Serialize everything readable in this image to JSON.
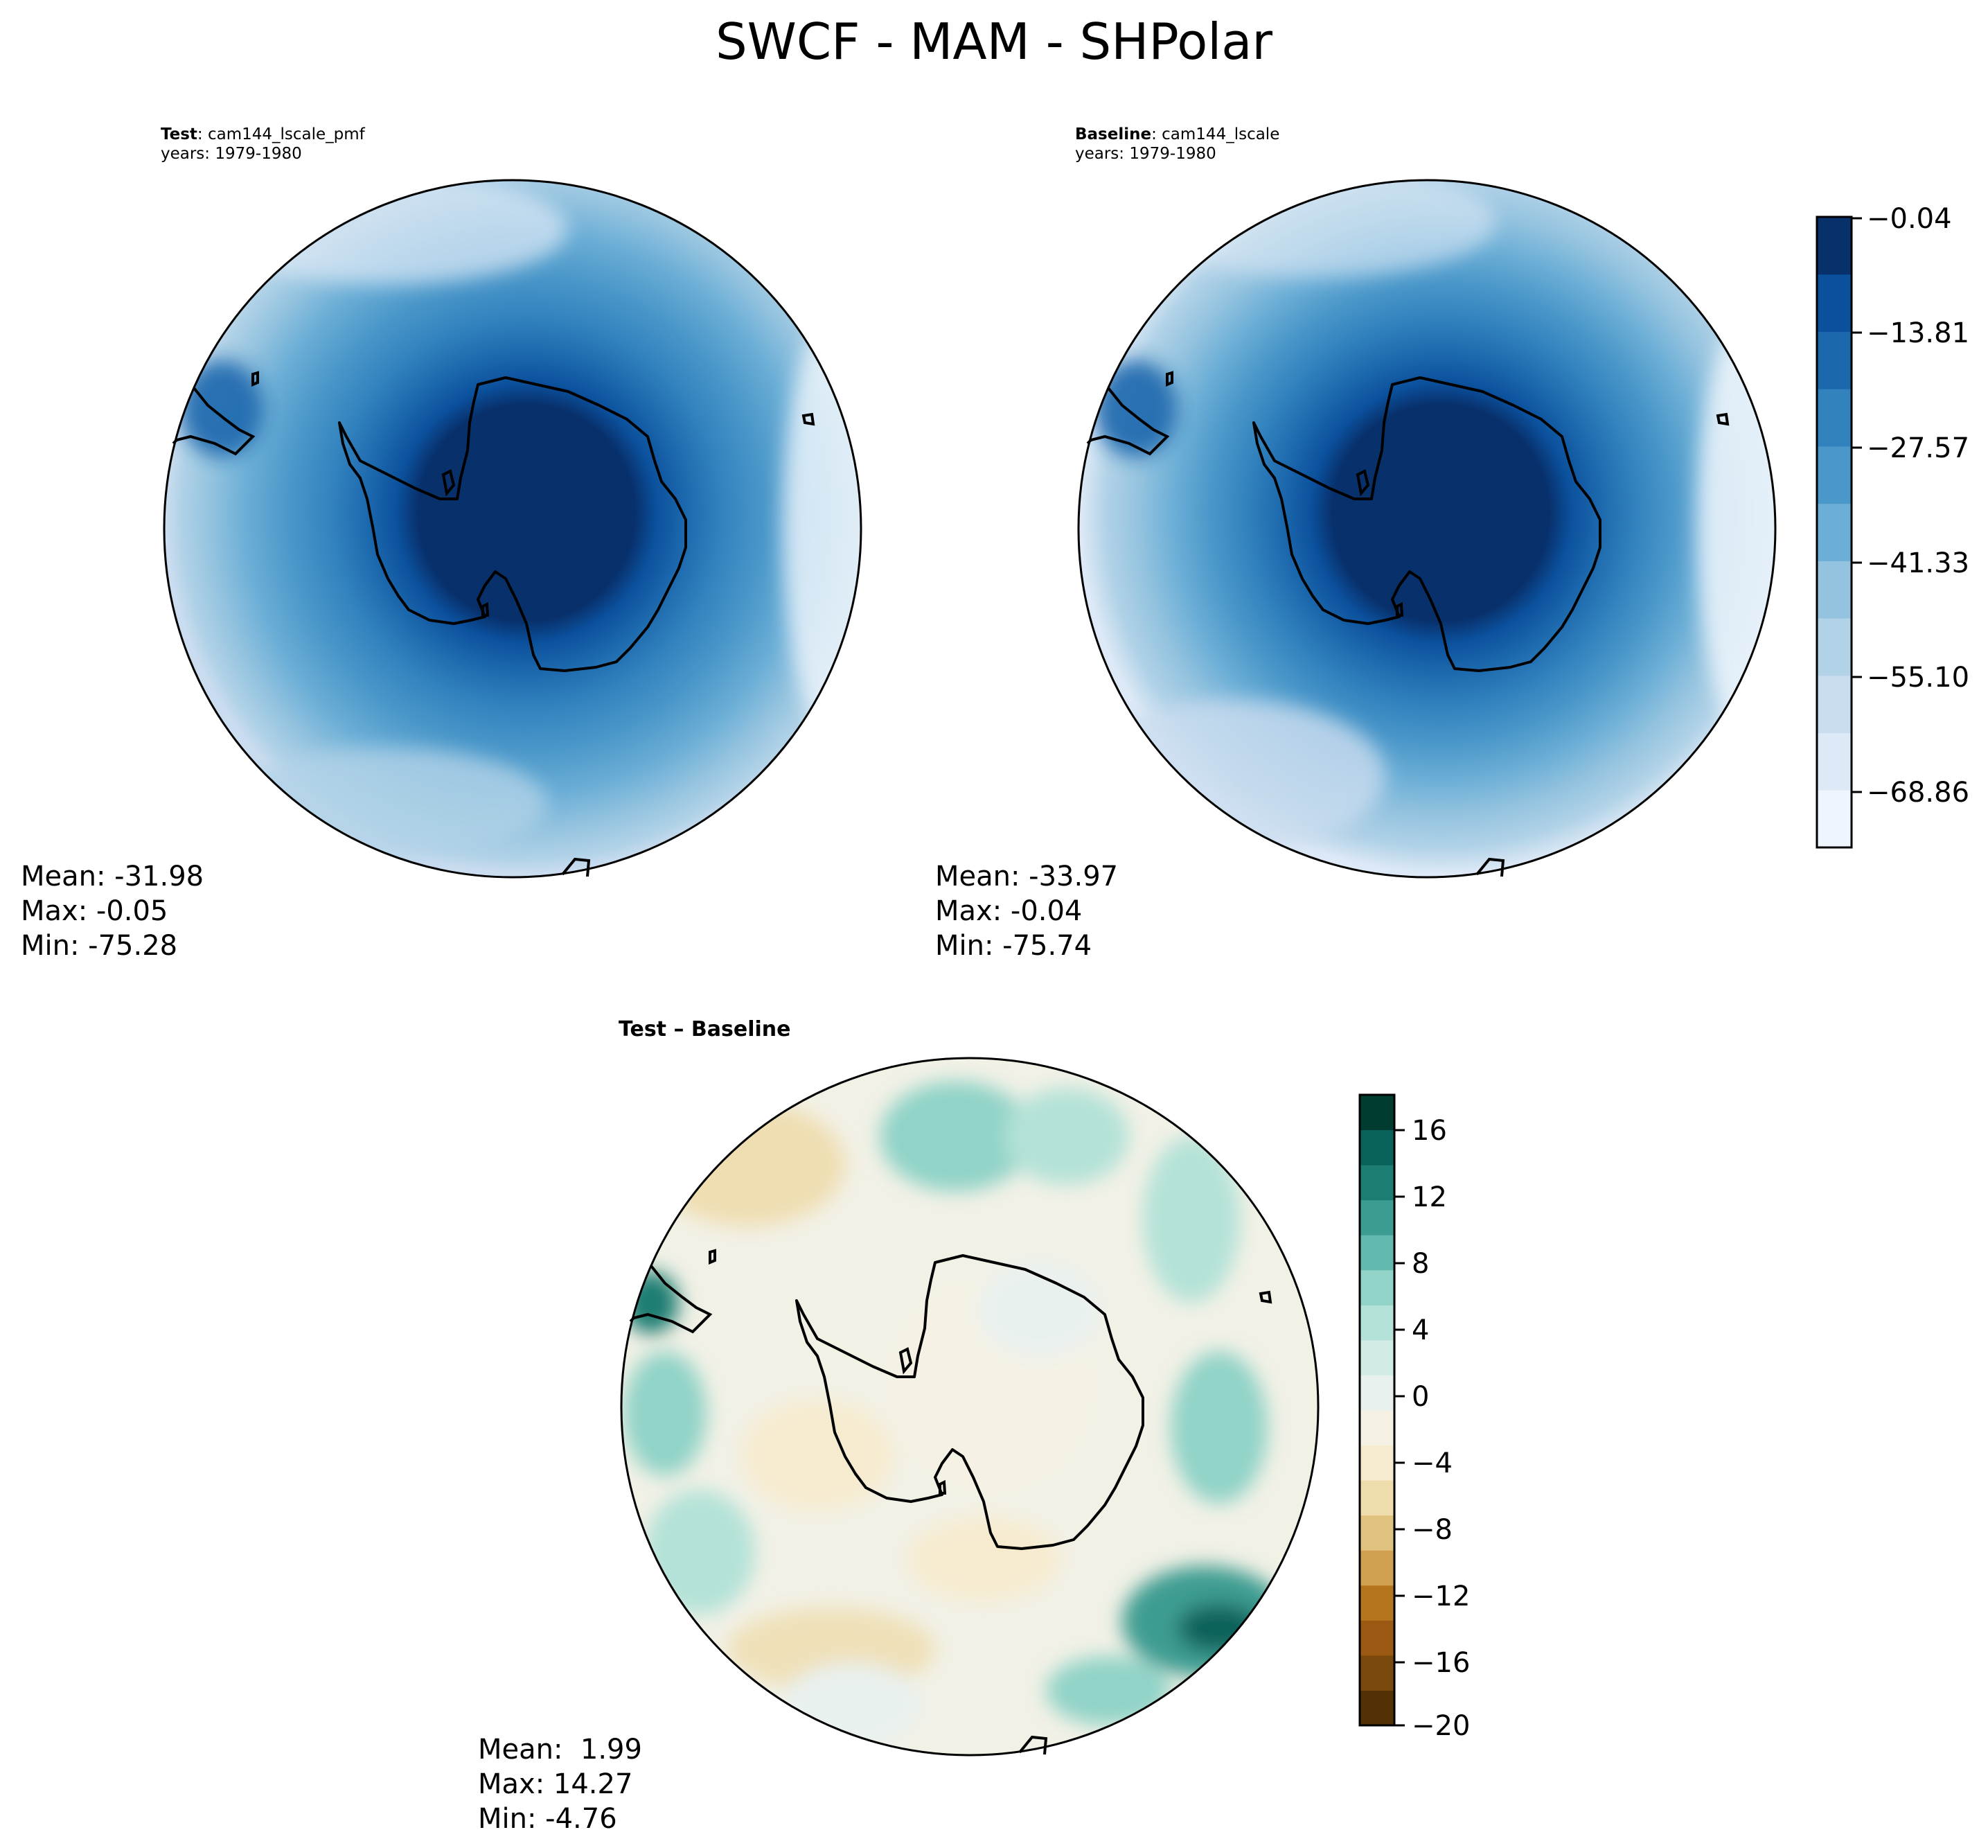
{
  "figure": {
    "title": "SWCF - MAM - SHPolar"
  },
  "panels": {
    "test": {
      "label_bold": "Test",
      "label_rest": ": cam144_lscale_pmf",
      "years": "years: 1979-1980",
      "stats": {
        "mean": "Mean: -31.98",
        "max": "Max: -0.05",
        "min": "Min: -75.28"
      }
    },
    "baseline": {
      "label_bold": "Baseline",
      "label_rest": ": cam144_lscale",
      "years": "years: 1979-1980",
      "stats": {
        "mean": "Mean: -33.97",
        "max": "Max: -0.04",
        "min": "Min: -75.74"
      }
    },
    "diff": {
      "title": "Test – Baseline",
      "stats": {
        "mean": "Mean:  1.99",
        "max": "Max: 14.27",
        "min": "Min: -4.76"
      }
    }
  },
  "colorbars": {
    "main": {
      "ticks": [
        "−0.04",
        "−13.81",
        "−27.57",
        "−41.33",
        "−55.10",
        "−68.86"
      ],
      "colors": [
        "#eef5fc",
        "#dde9f6",
        "#cadcef",
        "#b1d2e7",
        "#94c3df",
        "#6baed6",
        "#4a97c9",
        "#3282be",
        "#1c68ad",
        "#0b509c",
        "#08306b"
      ]
    },
    "diff": {
      "ticks": [
        "16",
        "12",
        "8",
        "4",
        "0",
        "−4",
        "−8",
        "−12",
        "−16",
        "−20"
      ],
      "colors": [
        "#543005",
        "#7a4a0d",
        "#9b5a14",
        "#b5751f",
        "#cfa04f",
        "#dfc27d",
        "#eedcac",
        "#f6ebcf",
        "#f5f1e4",
        "#e9f1ef",
        "#d1ece6",
        "#b4e2d8",
        "#91d3c7",
        "#63b9ad",
        "#3c9c91",
        "#1c7d72",
        "#08625a",
        "#003c30"
      ]
    }
  },
  "chart_data": [
    {
      "type": "heatmap",
      "title": "Test : cam144_lscale_pmf",
      "projection": "south-polar-stereographic",
      "field": "SWCF",
      "season": "MAM",
      "years": "1979-1980",
      "mean": -31.98,
      "max": -0.05,
      "min": -75.28,
      "levels": [
        -75.74,
        -68.86,
        -61.98,
        -55.1,
        -48.22,
        -41.33,
        -34.45,
        -27.57,
        -20.69,
        -13.81,
        -6.93,
        -0.04
      ]
    },
    {
      "type": "heatmap",
      "title": "Baseline : cam144_lscale",
      "projection": "south-polar-stereographic",
      "field": "SWCF",
      "season": "MAM",
      "years": "1979-1980",
      "mean": -33.97,
      "max": -0.04,
      "min": -75.74,
      "levels": [
        -75.74,
        -68.86,
        -61.98,
        -55.1,
        -48.22,
        -41.33,
        -34.45,
        -27.57,
        -20.69,
        -13.81,
        -6.93,
        -0.04
      ]
    },
    {
      "type": "heatmap",
      "title": "Test – Baseline",
      "projection": "south-polar-stereographic",
      "mean": 1.99,
      "max": 14.27,
      "min": -4.76,
      "levels": [
        -20,
        -18,
        -16,
        -14,
        -12,
        -10,
        -8,
        -6,
        -4,
        -2,
        0,
        2,
        4,
        6,
        8,
        10,
        12,
        14,
        16,
        18
      ]
    }
  ]
}
